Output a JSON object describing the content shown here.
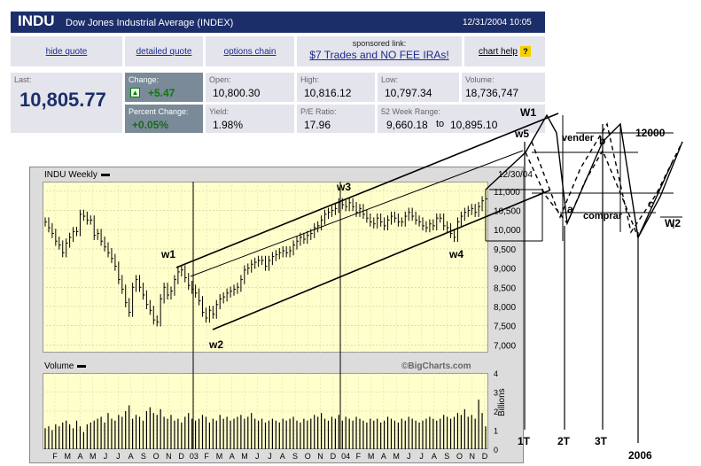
{
  "quote": {
    "symbol": "INDU",
    "name": "Dow Jones Industrial Average (INDEX)",
    "datetime": "12/31/2004 10:05",
    "links": {
      "hide_quote": "hide quote",
      "detailed_quote": "detailed quote",
      "options_chain": "options chain",
      "chart_help": "chart help"
    },
    "sponsor": {
      "label": "sponsored link:",
      "text": "$7 Trades and NO FEE IRAs!"
    },
    "last_label": "Last:",
    "last": "10,805.77",
    "change_label": "Change:",
    "change": "+5.47",
    "pct_label": "Percent Change:",
    "pct": "+0.05%",
    "open_label": "Open:",
    "open": "10,800.30",
    "high_label": "High:",
    "high": "10,816.12",
    "low_label": "Low:",
    "low": "10,797.34",
    "volume_label": "Volume:",
    "volume": "18,736,747",
    "yield_label": "Yield:",
    "yield": "1.98%",
    "pe_label": "P/E Ratio:",
    "pe": "17.96",
    "range_label": "52 Week Range:",
    "range_low": "9,660.18",
    "range_to": "to",
    "range_high": "10,895.10",
    "up_arrow_icon": "up-arrow-icon",
    "colors": {
      "header": "#1c2e6a",
      "panel": "#e4e4ec",
      "plot_bg": "#ffffcc",
      "green": "#0a7a0a",
      "link": "#1a2b8c"
    }
  },
  "chart_data": {
    "type": "bar",
    "title": "INDU Weekly",
    "end_date": "12/30/04",
    "volume_title": "Volume",
    "volume_unit": "Billions",
    "watermark": "©BigCharts.com",
    "y_ticks": [
      "11,000",
      "10,500",
      "10,000",
      "9,500",
      "9,000",
      "8,500",
      "8,000",
      "7,500",
      "7,000"
    ],
    "y_values": [
      11000,
      10500,
      10000,
      9500,
      9000,
      8500,
      8000,
      7500,
      7000
    ],
    "ylim": [
      6800,
      11250
    ],
    "vol_ticks": [
      "4",
      "3",
      "2",
      "1",
      "0"
    ],
    "vol_values": [
      4,
      3,
      2,
      1,
      0
    ],
    "x_ticks": [
      "F",
      "M",
      "A",
      "M",
      "J",
      "J",
      "A",
      "S",
      "O",
      "N",
      "D",
      "03",
      "F",
      "M",
      "A",
      "M",
      "J",
      "J",
      "A",
      "S",
      "O",
      "N",
      "D",
      "04",
      "F",
      "M",
      "A",
      "M",
      "J",
      "J",
      "A",
      "S",
      "O",
      "N",
      "D"
    ],
    "weekly_close": [
      10200,
      10050,
      9900,
      9700,
      9600,
      9400,
      9650,
      9800,
      9950,
      9950,
      10400,
      10350,
      10250,
      10250,
      9850,
      9900,
      9700,
      9550,
      9400,
      9250,
      9050,
      8700,
      8450,
      8100,
      7850,
      8500,
      8700,
      8500,
      8300,
      8050,
      7900,
      7650,
      7600,
      8200,
      8500,
      8300,
      8400,
      8700,
      8900,
      8950,
      8750,
      8550,
      8450,
      8350,
      8150,
      7850,
      7700,
      7900,
      7800,
      8050,
      8200,
      8250,
      8350,
      8400,
      8450,
      8500,
      8700,
      8950,
      9000,
      9100,
      9150,
      9200,
      9200,
      9050,
      9200,
      9300,
      9350,
      9400,
      9450,
      9400,
      9450,
      9600,
      9700,
      9800,
      9750,
      9850,
      9900,
      10050,
      10100,
      10250,
      10400,
      10450,
      10500,
      10550,
      10700,
      10650,
      10600,
      10700,
      10600,
      10450,
      10550,
      10400,
      10300,
      10200,
      10150,
      10300,
      10200,
      10100,
      10250,
      10350,
      10300,
      10200,
      10200,
      10350,
      10450,
      10350,
      10250,
      10200,
      10100,
      10050,
      10150,
      10100,
      10300,
      10300,
      10100,
      10050,
      9900,
      9800,
      10200,
      10350,
      10450,
      10500,
      10550,
      10450,
      10600,
      10750,
      10800
    ],
    "weekly_volume": [
      1.1,
      1.2,
      1.0,
      1.3,
      1.2,
      1.4,
      1.5,
      1.3,
      1.1,
      1.5,
      1.2,
      0.9,
      1.3,
      1.4,
      1.5,
      1.6,
      1.7,
      1.4,
      1.9,
      1.6,
      1.5,
      1.8,
      1.7,
      2.0,
      2.3,
      1.6,
      1.8,
      1.7,
      1.5,
      2.0,
      2.2,
      1.9,
      1.8,
      2.1,
      1.7,
      1.6,
      1.8,
      1.5,
      1.6,
      1.4,
      1.7,
      1.9,
      1.6,
      1.5,
      1.6,
      1.8,
      1.7,
      1.4,
      1.6,
      1.5,
      1.8,
      1.6,
      1.7,
      1.5,
      1.6,
      1.7,
      1.8,
      1.6,
      1.7,
      1.9,
      1.6,
      1.5,
      1.6,
      1.4,
      1.5,
      1.6,
      1.5,
      1.4,
      1.6,
      1.5,
      1.6,
      1.7,
      1.5,
      1.4,
      1.6,
      1.5,
      1.6,
      1.8,
      1.7,
      1.9,
      1.6,
      1.5,
      1.7,
      1.6,
      1.8,
      1.5,
      1.7,
      1.6,
      1.5,
      1.7,
      1.6,
      1.5,
      1.4,
      1.6,
      1.5,
      1.6,
      1.4,
      1.5,
      1.7,
      1.6,
      1.5,
      1.4,
      1.6,
      1.5,
      1.7,
      1.6,
      1.5,
      1.4,
      1.5,
      1.6,
      1.7,
      1.6,
      1.5,
      1.6,
      1.8,
      1.7,
      1.6,
      1.7,
      1.9,
      1.8,
      2.1,
      1.7,
      1.8,
      1.6,
      2.6,
      1.9,
      1.2
    ],
    "annotations": {
      "w1": "w1",
      "w2": "w2",
      "w3": "w3",
      "w4": "w4",
      "w5": "w5",
      "W1": "W1",
      "W2": "W2",
      "a": "a",
      "b": "b",
      "c": "c",
      "vender": "vender",
      "comprar": "comprar",
      "target": "12000",
      "t1": "1T",
      "t2": "2T",
      "t3": "3T",
      "year": "2006"
    }
  }
}
